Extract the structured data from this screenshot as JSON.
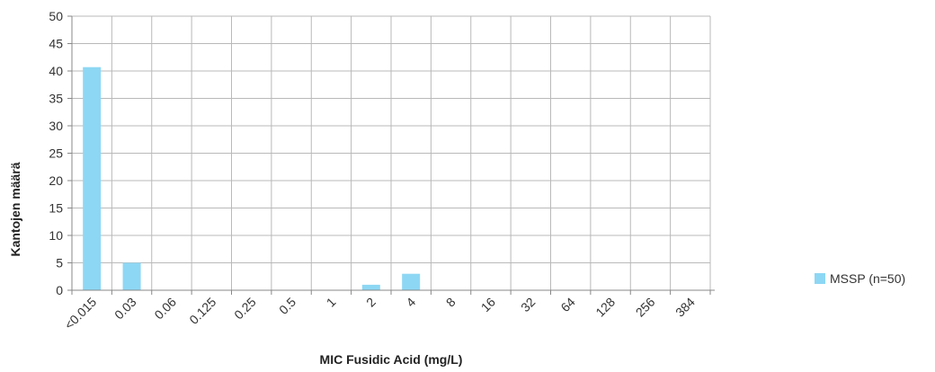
{
  "chart_data": {
    "type": "bar",
    "categories": [
      "<0.015",
      "0.03",
      "0.06",
      "0.125",
      "0.25",
      "0.5",
      "1",
      "2",
      "4",
      "8",
      "16",
      "32",
      "64",
      "128",
      "256",
      "384"
    ],
    "series": [
      {
        "name": "MSSP (n=50)",
        "values": [
          40.7,
          5,
          0,
          0,
          0,
          0,
          0,
          1,
          3,
          0,
          0,
          0,
          0,
          0,
          0,
          0
        ],
        "color": "#8dd7f4"
      }
    ],
    "xlabel": "MIC Fusidic Acid (mg/L)",
    "ylabel": "Kantojen määrä",
    "ylim": [
      0,
      50
    ],
    "yticks": [
      0,
      5,
      10,
      15,
      20,
      25,
      30,
      35,
      40,
      45,
      50
    ],
    "grid": true,
    "legend_position": "right",
    "colors": {
      "grid": "#b9b9b9",
      "axis": "#888888"
    }
  }
}
